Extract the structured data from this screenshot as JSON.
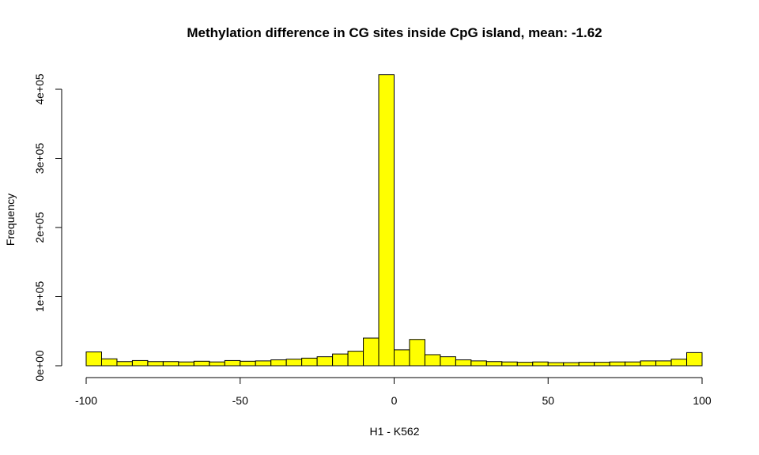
{
  "chart_data": {
    "type": "bar",
    "title": "Methylation difference in CG sites inside CpG island, mean: -1.62",
    "xlabel": "H1 - K562",
    "ylabel": "Frequency",
    "xlim": [
      -100,
      100
    ],
    "ylim": [
      0,
      420000
    ],
    "x_ticks": [
      -100,
      -50,
      0,
      50,
      100
    ],
    "x_tick_labels": [
      "-100",
      "-50",
      "0",
      "50",
      "100"
    ],
    "y_ticks": [
      0,
      100000,
      200000,
      300000,
      400000
    ],
    "y_tick_labels": [
      "0e+00",
      "1e+05",
      "2e+05",
      "3e+05",
      "4e+05"
    ],
    "bar_color": "#ffff00",
    "bin_edges": [
      -100,
      -95,
      -90,
      -85,
      -80,
      -75,
      -70,
      -65,
      -60,
      -55,
      -50,
      -45,
      -40,
      -35,
      -30,
      -25,
      -20,
      -15,
      -10,
      -5,
      0,
      5,
      10,
      15,
      20,
      25,
      30,
      35,
      40,
      45,
      50,
      55,
      60,
      65,
      70,
      75,
      80,
      85,
      90,
      95,
      100
    ],
    "values": [
      20000,
      10000,
      6000,
      7500,
      6000,
      6000,
      5500,
      6500,
      5500,
      7500,
      6500,
      7000,
      8500,
      9500,
      11000,
      13000,
      17000,
      21000,
      40000,
      421000,
      23000,
      38000,
      16000,
      13000,
      8500,
      7000,
      6000,
      5500,
      5000,
      5500,
      4500,
      4500,
      5000,
      5000,
      5500,
      5500,
      7000,
      7000,
      9500,
      19000
    ],
    "grid": false,
    "legend": "none"
  }
}
